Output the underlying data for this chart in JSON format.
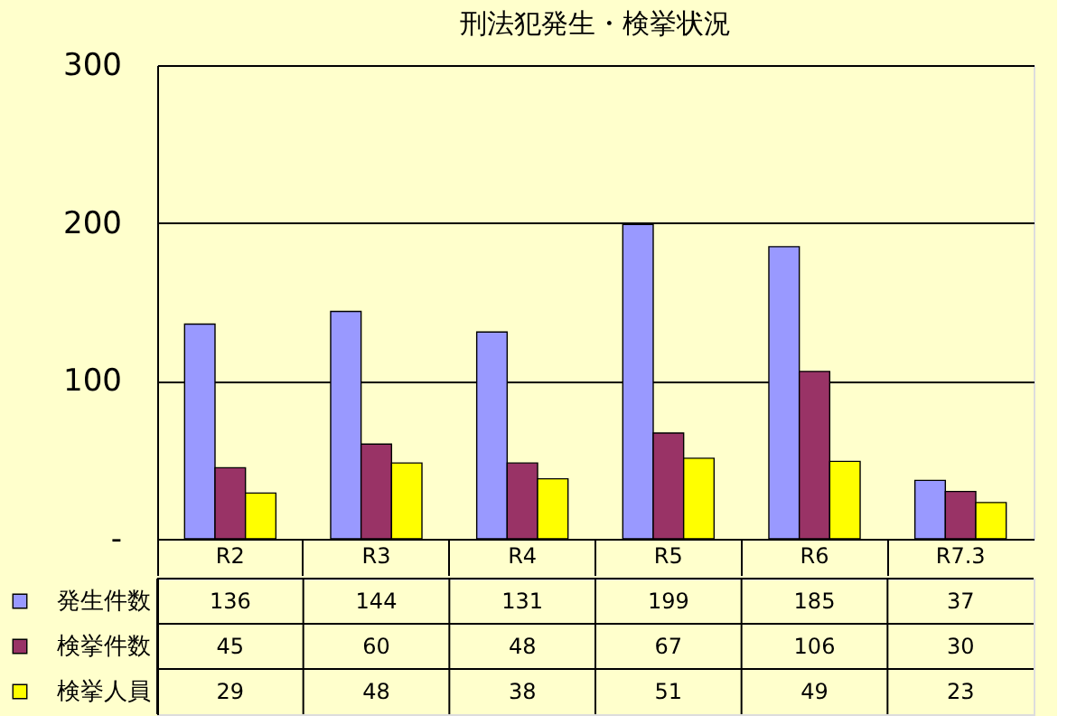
{
  "chart_data": {
    "type": "bar",
    "title": "刑法犯発生・検挙状況",
    "categories": [
      "R2",
      "R3",
      "R4",
      "R5",
      "R6",
      "R7.3"
    ],
    "series": [
      {
        "name": "発生件数",
        "color": "#9999ff",
        "values": [
          136,
          144,
          131,
          199,
          185,
          37
        ]
      },
      {
        "name": "検挙件数",
        "color": "#993366",
        "values": [
          45,
          60,
          48,
          67,
          106,
          30
        ]
      },
      {
        "name": "検挙人員",
        "color": "#ffff00",
        "values": [
          29,
          48,
          38,
          51,
          49,
          23
        ]
      }
    ],
    "ylim": [
      0,
      300
    ],
    "yticks": [
      {
        "value": 0,
        "label": "-"
      },
      100,
      200,
      300
    ],
    "grid": "y",
    "legend": "bottom",
    "data_labels": true
  }
}
